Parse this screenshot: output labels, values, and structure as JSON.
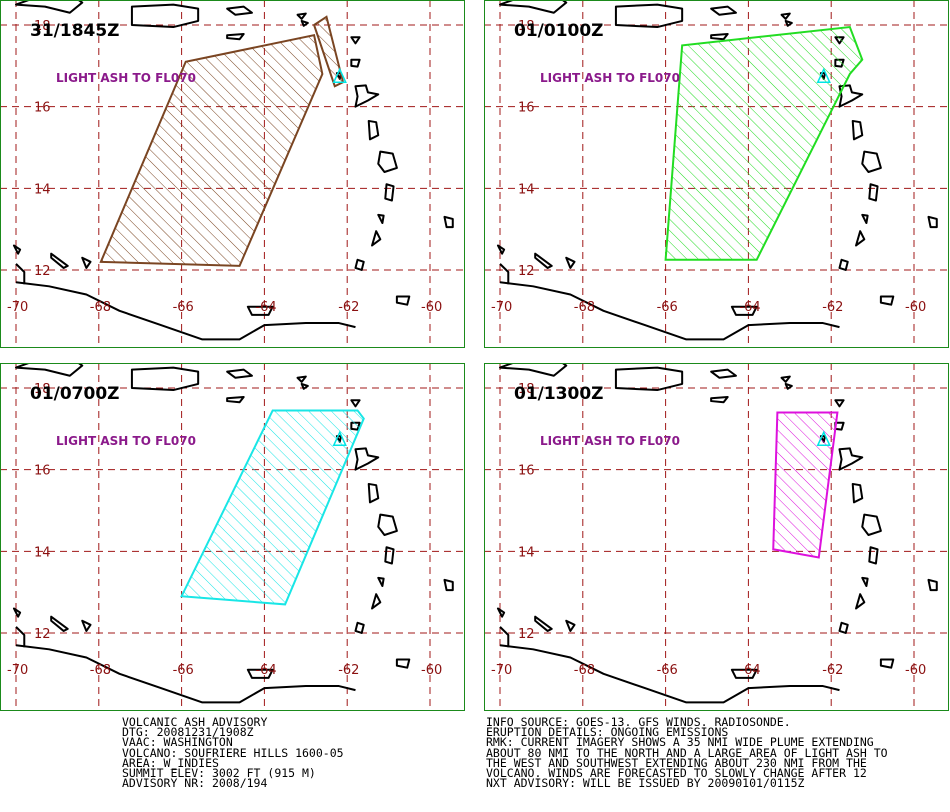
{
  "map": {
    "lon_ticks": [
      "-70",
      "-68",
      "-66",
      "-64",
      "-62",
      "-60"
    ],
    "lat_ticks": [
      "18",
      "16",
      "14",
      "12"
    ],
    "ash_label": "LIGHT ASH TO FL070",
    "volcano_marker": "volcano-triangle"
  },
  "panels": [
    {
      "time": "31/1845Z",
      "color": "#7a4522",
      "polygon": [
        [
          -67.95,
          12.2
        ],
        [
          -64.6,
          12.1
        ],
        [
          -62.6,
          16.8
        ],
        [
          -62.8,
          17.75
        ],
        [
          -65.9,
          17.1
        ]
      ],
      "extra_polygon": [
        [
          -62.8,
          18.0
        ],
        [
          -62.5,
          18.2
        ],
        [
          -62.1,
          16.6
        ],
        [
          -62.3,
          16.5
        ]
      ]
    },
    {
      "time": "01/0100Z",
      "color": "#22dd22",
      "polygon": [
        [
          -66.0,
          12.25
        ],
        [
          -63.8,
          12.25
        ],
        [
          -61.55,
          16.8
        ],
        [
          -61.25,
          17.15
        ],
        [
          -61.55,
          17.95
        ],
        [
          -65.6,
          17.5
        ]
      ]
    },
    {
      "time": "01/0700Z",
      "color": "#19e6e6",
      "polygon": [
        [
          -66.0,
          12.9
        ],
        [
          -63.5,
          12.7
        ],
        [
          -61.6,
          17.25
        ],
        [
          -61.75,
          17.45
        ],
        [
          -63.8,
          17.45
        ]
      ]
    },
    {
      "time": "01/1300Z",
      "color": "#dd11dd",
      "polygon": [
        [
          -63.3,
          17.4
        ],
        [
          -61.85,
          17.4
        ],
        [
          -62.3,
          13.85
        ],
        [
          -63.4,
          14.05
        ]
      ]
    }
  ],
  "advisory_left": [
    "VOLCANIC ASH ADVISORY",
    "DTG: 20081231/1908Z",
    "VAAC: WASHINGTON",
    "VOLCANO: SOUFRIERE HILLS 1600-05",
    "AREA: W_INDIES",
    "SUMMIT ELEV: 3002 FT (915 M)",
    "ADVISORY NR: 2008/194"
  ],
  "advisory_right": [
    "INFO SOURCE: GOES-13. GFS WINDS. RADIOSONDE.",
    "ERUPTION DETAILS: ONGOING EMISSIONS",
    "RMK: CURRENT IMAGERY SHOWS A 35 NMI WIDE PLUME EXTENDING",
    "ABOUT 80 NMI TO THE NORTH AND A LARGE AREA OF LIGHT ASH TO",
    "THE WEST AND SOUTHWEST EXTENDING ABOUT 230 NMI FROM THE",
    "VOLCANO. WINDS ARE FORECASTED TO SLOWLY CHANGE AFTER 12",
    "NXT ADVISORY: WILL BE ISSUED BY 20090101/0115Z"
  ]
}
